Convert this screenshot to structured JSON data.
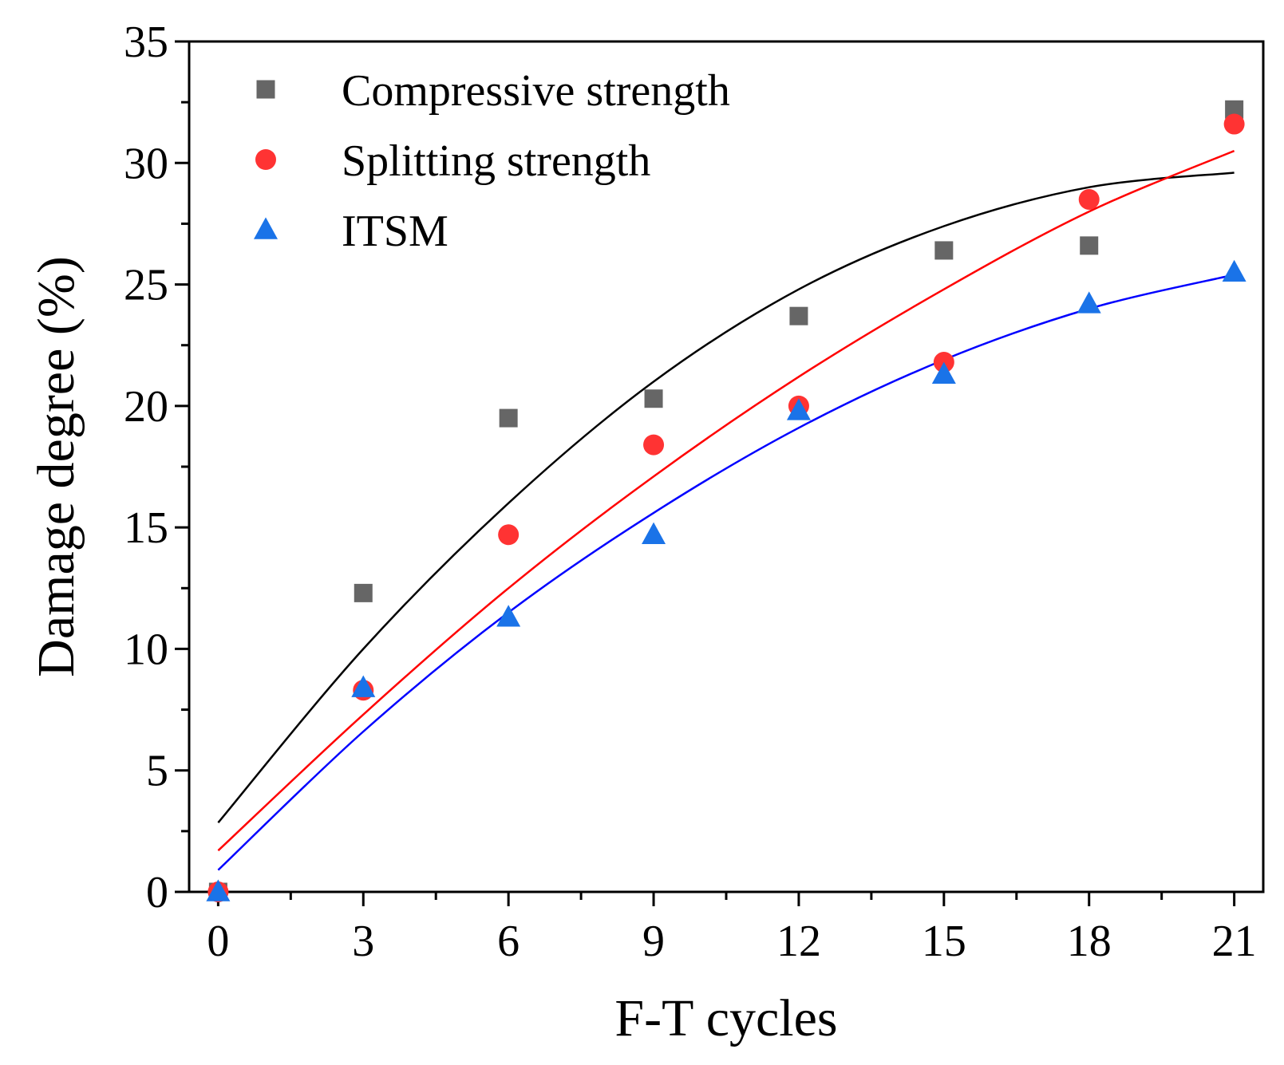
{
  "chart_data": {
    "type": "scatter",
    "xlabel": "F-T cycles",
    "ylabel": "Damage degree (%)",
    "xlim": [
      -0.6,
      21.6
    ],
    "ylim": [
      0,
      35
    ],
    "x_ticks": [
      0,
      3,
      6,
      9,
      12,
      15,
      18,
      21
    ],
    "y_ticks": [
      0,
      5,
      10,
      15,
      20,
      25,
      30,
      35
    ],
    "x_tick_labels": [
      "0",
      "3",
      "6",
      "9",
      "12",
      "15",
      "18",
      "21"
    ],
    "y_tick_labels": [
      "0",
      "5",
      "10",
      "15",
      "20",
      "25",
      "30",
      "35"
    ],
    "x_minor_step": 1.5,
    "y_minor_step": 2.5,
    "grid": false,
    "legend_position": "top-left",
    "x": [
      0,
      3,
      6,
      9,
      12,
      15,
      18,
      21
    ],
    "series": [
      {
        "name": "Compressive strength",
        "marker": "square",
        "color": "#666666",
        "fit_color": "#000000",
        "values": [
          0,
          12.3,
          19.5,
          20.3,
          23.7,
          26.4,
          26.6,
          32.2
        ],
        "fit_values": [
          2.85,
          10.0,
          16.0,
          21.0,
          24.8,
          27.4,
          29.0,
          29.6
        ]
      },
      {
        "name": "Splitting strength",
        "marker": "circle",
        "color": "#ff3333",
        "fit_color": "#ff0000",
        "values": [
          0,
          8.3,
          14.7,
          18.4,
          20.0,
          21.8,
          28.5,
          31.6
        ],
        "fit_values": [
          1.7,
          7.3,
          12.5,
          17.1,
          21.2,
          24.8,
          28.0,
          30.5
        ]
      },
      {
        "name": "ITSM",
        "marker": "triangle",
        "color": "#1a73e8",
        "fit_color": "#0000ff",
        "values": [
          0,
          8.4,
          11.3,
          14.7,
          19.8,
          21.3,
          24.2,
          25.5
        ],
        "fit_values": [
          0.9,
          6.6,
          11.5,
          15.6,
          19.1,
          21.9,
          24.0,
          25.4
        ]
      }
    ]
  }
}
